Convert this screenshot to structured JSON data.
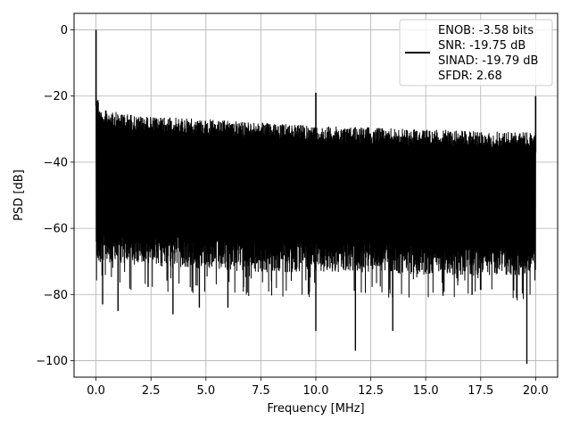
{
  "chart_data": {
    "type": "line",
    "title": "",
    "xlabel": "Frequency [MHz]",
    "ylabel": "PSD [dB]",
    "xlim": [
      -1.0,
      21.0
    ],
    "ylim": [
      -105.0,
      5.0
    ],
    "x_ticks": [
      0.0,
      2.5,
      5.0,
      7.5,
      10.0,
      12.5,
      15.0,
      17.5,
      20.0
    ],
    "x_tick_labels": [
      "0.0",
      "2.5",
      "5.0",
      "7.5",
      "10.0",
      "12.5",
      "15.0",
      "17.5",
      "20.0"
    ],
    "y_ticks": [
      0,
      -20,
      -40,
      -60,
      -80,
      -100
    ],
    "y_tick_labels": [
      "0",
      "−20",
      "−40",
      "−60",
      "−80",
      "−100"
    ],
    "grid": true,
    "legend_position": "top-right",
    "legend_lines": [
      "ENOB: -3.58 bits",
      "SNR: -19.75 dB",
      "SINAD: -19.79 dB",
      "SFDR: 2.68"
    ],
    "line_color": "#000000",
    "series": [
      {
        "name": "ENOB: -3.58 bits\nSNR: -19.75 dB\nSINAD: -19.79 dB\nSFDR: 2.68",
        "noise_band": {
          "x": [
            0.0,
            0.2,
            2.0,
            5.0,
            7.5,
            10.0,
            12.5,
            15.0,
            17.5,
            20.0
          ],
          "upper": [
            -17,
            -24,
            -26,
            -27,
            -28,
            -29,
            -29.5,
            -30,
            -30.5,
            -31
          ],
          "typical_lower": [
            -69,
            -69,
            -70,
            -71,
            -72,
            -72,
            -72,
            -73,
            -73,
            -73
          ]
        },
        "spikes": [
          {
            "x": 0.0,
            "y": 0
          },
          {
            "x": 10.0,
            "y": -19
          },
          {
            "x": 20.0,
            "y": -20
          }
        ],
        "deep_nulls": [
          {
            "x": 0.3,
            "y": -83
          },
          {
            "x": 1.0,
            "y": -85
          },
          {
            "x": 3.5,
            "y": -86
          },
          {
            "x": 4.7,
            "y": -84
          },
          {
            "x": 6.0,
            "y": -84
          },
          {
            "x": 10.0,
            "y": -91
          },
          {
            "x": 11.8,
            "y": -97
          },
          {
            "x": 13.5,
            "y": -91
          },
          {
            "x": 19.6,
            "y": -101
          }
        ]
      }
    ]
  }
}
